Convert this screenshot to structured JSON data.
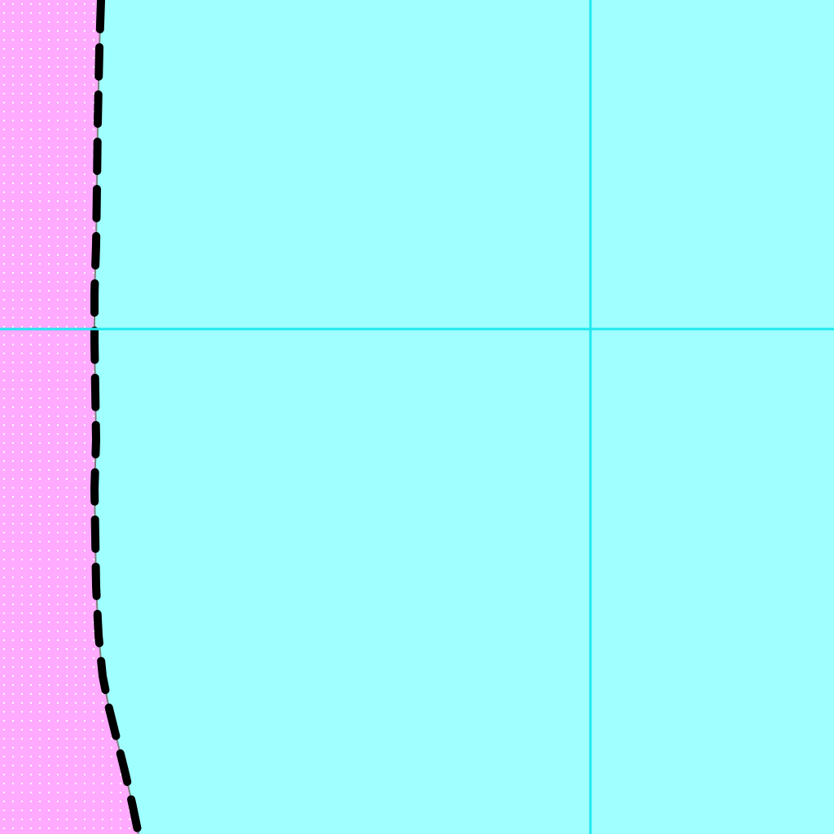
{
  "map": {
    "colors": {
      "water": "#a0ffff",
      "land": "#ffaaff",
      "land_dots": "#ffffff",
      "grid_lines": "#20e8f0",
      "boundary_dashes": "#000000",
      "coastline": "#808080"
    },
    "layers": [
      "water",
      "land",
      "coastline",
      "boundary",
      "graticule"
    ],
    "boundary_style": "dashed",
    "land_pattern": "dotted"
  }
}
